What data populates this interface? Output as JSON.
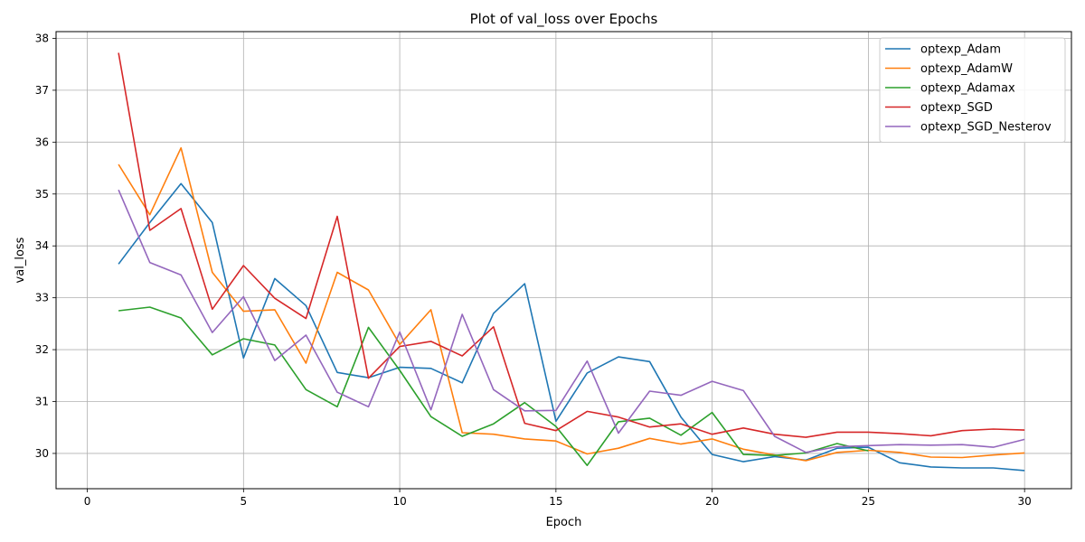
{
  "chart_data": {
    "type": "line",
    "title": "Plot of val_loss over Epochs",
    "xlabel": "Epoch",
    "ylabel": "val_loss",
    "xlim": [
      -1,
      31.5
    ],
    "ylim": [
      29.32,
      38.13
    ],
    "xticks": [
      0,
      5,
      10,
      15,
      20,
      25,
      30
    ],
    "yticks": [
      30,
      31,
      32,
      33,
      34,
      35,
      36,
      37,
      38
    ],
    "grid": true,
    "legend_position": "top-right",
    "x": [
      1,
      2,
      3,
      4,
      5,
      6,
      7,
      8,
      9,
      10,
      11,
      12,
      13,
      14,
      15,
      16,
      17,
      18,
      19,
      20,
      21,
      22,
      23,
      24,
      25,
      26,
      27,
      28,
      29,
      30
    ],
    "series": [
      {
        "name": "optexp_Adam",
        "color": "#1f77b4",
        "values": [
          33.65,
          34.45,
          35.2,
          34.45,
          31.84,
          33.37,
          32.85,
          31.56,
          31.46,
          31.66,
          31.64,
          31.36,
          32.7,
          33.27,
          30.62,
          31.55,
          31.86,
          31.77,
          30.7,
          29.98,
          29.84,
          29.94,
          29.87,
          30.1,
          30.12,
          29.82,
          29.74,
          29.72,
          29.72,
          29.67
        ]
      },
      {
        "name": "optexp_AdamW",
        "color": "#ff7f0e",
        "values": [
          35.57,
          34.6,
          35.89,
          33.49,
          32.74,
          32.77,
          31.74,
          33.49,
          33.15,
          32.1,
          32.77,
          30.4,
          30.37,
          30.28,
          30.24,
          29.99,
          30.1,
          30.29,
          30.18,
          30.28,
          30.08,
          29.97,
          29.86,
          30.02,
          30.06,
          30.02,
          29.93,
          29.92,
          29.97,
          30.01
        ]
      },
      {
        "name": "optexp_Adamax",
        "color": "#2ca02c",
        "values": [
          32.75,
          32.82,
          32.61,
          31.9,
          32.21,
          32.09,
          31.23,
          30.9,
          32.43,
          31.6,
          30.71,
          30.33,
          30.57,
          30.98,
          30.52,
          29.77,
          30.61,
          30.68,
          30.35,
          30.79,
          29.98,
          29.96,
          30.01,
          30.19,
          30.05,
          null,
          null,
          null,
          null,
          null
        ]
      },
      {
        "name": "optexp_SGD",
        "color": "#d62728",
        "values": [
          37.72,
          34.3,
          34.72,
          32.78,
          33.62,
          32.99,
          32.6,
          34.57,
          31.45,
          32.06,
          32.16,
          31.88,
          32.44,
          30.58,
          30.44,
          30.81,
          30.7,
          30.51,
          30.57,
          30.37,
          30.49,
          30.37,
          30.31,
          30.41,
          30.41,
          30.38,
          30.34,
          30.44,
          30.47,
          30.45
        ]
      },
      {
        "name": "optexp_SGD_Nesterov",
        "color": "#9467bd",
        "values": [
          35.08,
          33.68,
          33.44,
          32.33,
          33.02,
          31.79,
          32.28,
          31.18,
          30.9,
          32.34,
          30.84,
          32.68,
          31.23,
          30.82,
          30.83,
          31.78,
          30.39,
          31.2,
          31.12,
          31.39,
          31.21,
          30.33,
          30.02,
          30.13,
          30.15,
          30.17,
          30.16,
          30.17,
          30.12,
          30.27
        ]
      }
    ]
  }
}
